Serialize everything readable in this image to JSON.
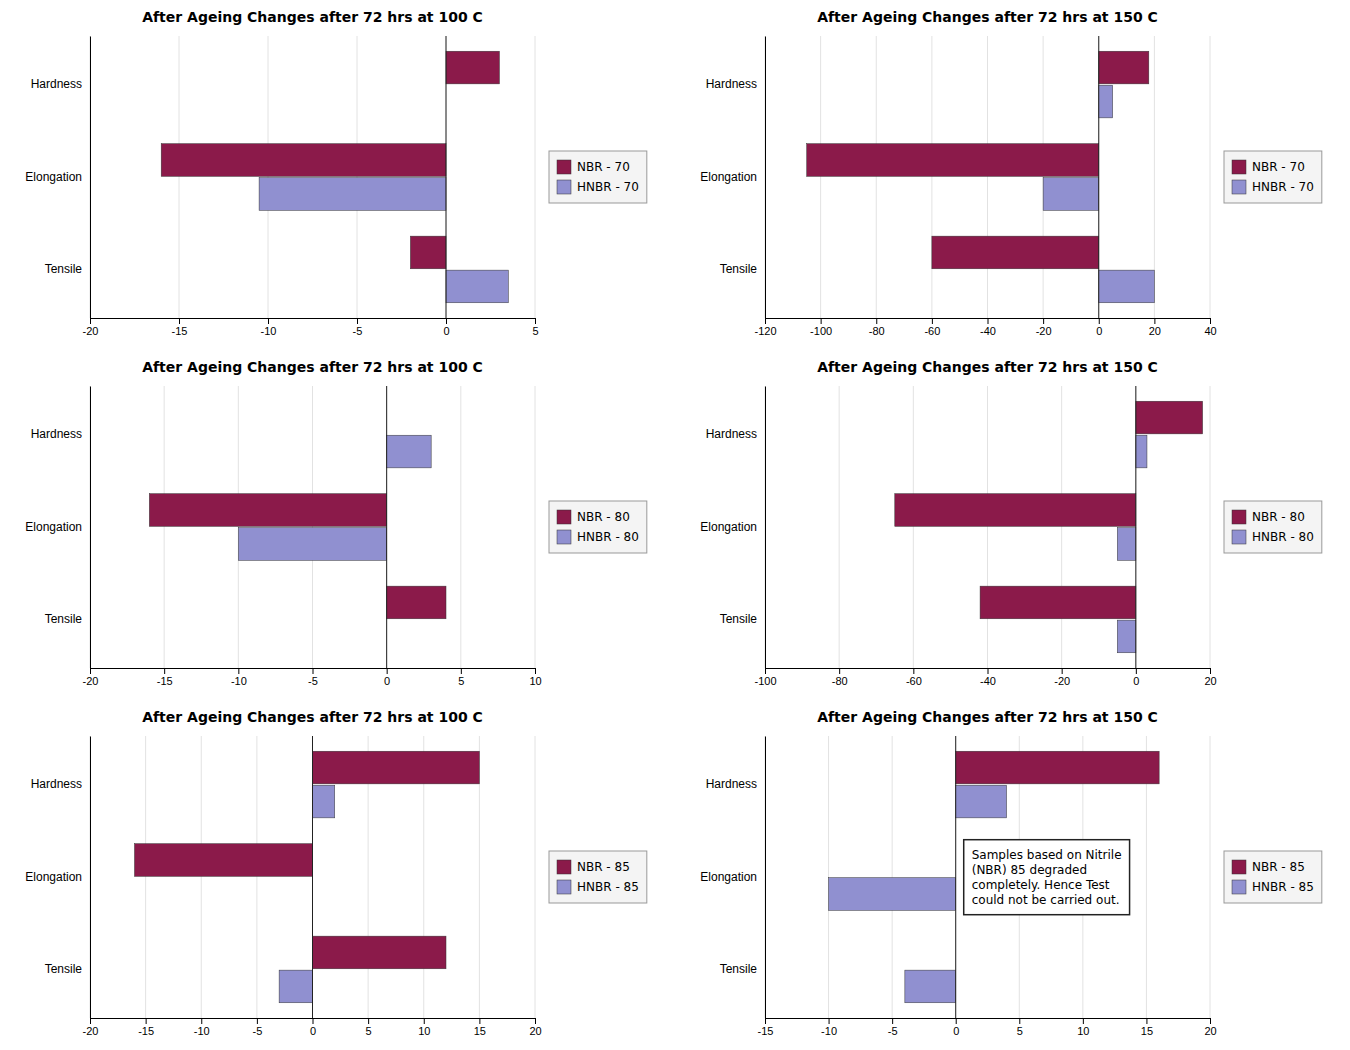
{
  "chart_data": [
    {
      "type": "bar",
      "orientation": "horizontal",
      "title": "After Ageing Changes after 72 hrs at 100 C",
      "categories": [
        "Hardness",
        "Elongation",
        "Tensile"
      ],
      "series": [
        {
          "name": "NBR - 70",
          "color": "#8B1A4A",
          "values": [
            3.0,
            -16.0,
            -2.0
          ]
        },
        {
          "name": "HNBR - 70",
          "color": "#9090D0",
          "values": [
            0.0,
            -10.5,
            3.5
          ]
        }
      ],
      "xlim": [
        -20,
        5
      ],
      "xticks": [
        -20,
        -15,
        -10,
        -5,
        0,
        5
      ],
      "grid": true,
      "legend": "right"
    },
    {
      "type": "bar",
      "orientation": "horizontal",
      "title": "After Ageing Changes after 72 hrs at 150 C",
      "categories": [
        "Hardness",
        "Elongation",
        "Tensile"
      ],
      "series": [
        {
          "name": "NBR - 70",
          "color": "#8B1A4A",
          "values": [
            18.0,
            -105.0,
            -60.0
          ]
        },
        {
          "name": "HNBR - 70",
          "color": "#9090D0",
          "values": [
            5.0,
            -20.0,
            20.0
          ]
        }
      ],
      "xlim": [
        -120,
        40
      ],
      "xticks": [
        -120,
        -100,
        -80,
        -60,
        -40,
        -20,
        0,
        20,
        40
      ],
      "grid": true,
      "legend": "right"
    },
    {
      "type": "bar",
      "orientation": "horizontal",
      "title": "After Ageing Changes after 72 hrs at 100 C",
      "categories": [
        "Hardness",
        "Elongation",
        "Tensile"
      ],
      "series": [
        {
          "name": "NBR - 80",
          "color": "#8B1A4A",
          "values": [
            0.0,
            -16.0,
            4.0
          ]
        },
        {
          "name": "HNBR - 80",
          "color": "#9090D0",
          "values": [
            3.0,
            -10.0,
            0.0
          ]
        }
      ],
      "xlim": [
        -20,
        10
      ],
      "xticks": [
        -20,
        -15,
        -10,
        -5,
        0,
        5,
        10
      ],
      "grid": true,
      "legend": "right"
    },
    {
      "type": "bar",
      "orientation": "horizontal",
      "title": "After Ageing Changes after 72 hrs at 150 C",
      "categories": [
        "Hardness",
        "Elongation",
        "Tensile"
      ],
      "series": [
        {
          "name": "NBR - 80",
          "color": "#8B1A4A",
          "values": [
            18.0,
            -65.0,
            -42.0
          ]
        },
        {
          "name": "HNBR - 80",
          "color": "#9090D0",
          "values": [
            3.0,
            -5.0,
            -5.0
          ]
        }
      ],
      "xlim": [
        -100,
        20
      ],
      "xticks": [
        -100,
        -80,
        -60,
        -40,
        -20,
        0,
        20
      ],
      "grid": true,
      "legend": "right"
    },
    {
      "type": "bar",
      "orientation": "horizontal",
      "title": "After Ageing Changes after 72 hrs at 100 C",
      "categories": [
        "Hardness",
        "Elongation",
        "Tensile"
      ],
      "series": [
        {
          "name": "NBR - 85",
          "color": "#8B1A4A",
          "values": [
            15.0,
            -16.0,
            12.0
          ]
        },
        {
          "name": "HNBR - 85",
          "color": "#9090D0",
          "values": [
            2.0,
            0.0,
            -3.0
          ]
        }
      ],
      "xlim": [
        -20,
        20
      ],
      "xticks": [
        -20,
        -15,
        -10,
        -5,
        0,
        5,
        10,
        15,
        20
      ],
      "grid": true,
      "legend": "right"
    },
    {
      "type": "bar",
      "orientation": "horizontal",
      "title": "After Ageing Changes after 72 hrs at 150 C",
      "categories": [
        "Hardness",
        "Elongation",
        "Tensile"
      ],
      "series": [
        {
          "name": "NBR - 85",
          "color": "#8B1A4A",
          "values": [
            16.0,
            0.0,
            0.0
          ]
        },
        {
          "name": "HNBR - 85",
          "color": "#9090D0",
          "values": [
            4.0,
            -10.0,
            -4.0
          ]
        }
      ],
      "xlim": [
        -15,
        20
      ],
      "xticks": [
        -15,
        -10,
        -5,
        0,
        5,
        10,
        15,
        20
      ],
      "grid": true,
      "legend": "right",
      "annotation": [
        "Samples based on Nitrile",
        "(NBR) 85 degraded",
        "completely. Hence Test",
        "could not be carried out."
      ]
    }
  ]
}
